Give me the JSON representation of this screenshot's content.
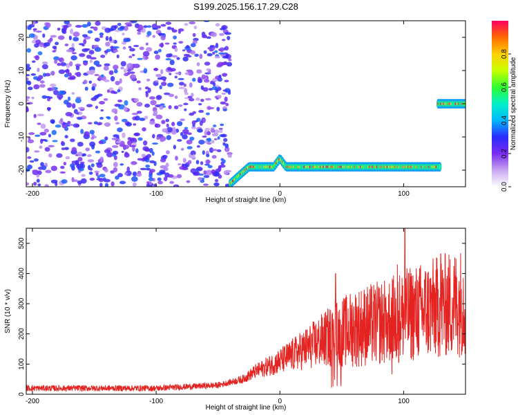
{
  "figure_title": "S199.2025.156.17.29.C28",
  "colors": {
    "snr_line": "#e52421",
    "axes": "#000000",
    "colormap": [
      "#ffffff",
      "#c9a6f0",
      "#7a2cf0",
      "#2b2bff",
      "#00b8ff",
      "#00f0c8",
      "#30ff30",
      "#c8ff00",
      "#ffd000",
      "#ff6a00",
      "#ff0060"
    ]
  },
  "chart_data": [
    {
      "type": "heatmap",
      "xlabel": "Height of straight line (km)",
      "ylabel": "Frequency (Hz)",
      "xlim": [
        -205,
        150
      ],
      "ylim": [
        -25,
        25
      ],
      "xticks": [
        "-200",
        "-100",
        "0",
        "100"
      ],
      "yticks": [
        "20",
        "10",
        "0",
        "-10",
        "-20"
      ],
      "colorbar": {
        "label": "Normalized spectral amplitude",
        "range": [
          0.0,
          1.0
        ],
        "ticks": [
          "0.0",
          "0.2",
          "0.4",
          "0.6",
          "0.8"
        ]
      },
      "regions": [
        {
          "description": "scattered low-amplitude noise",
          "x_range": [
            -205,
            -40
          ],
          "y_range": [
            -25,
            25
          ],
          "amplitude": [
            0.1,
            0.35
          ]
        },
        {
          "description": "strong band",
          "x_range": [
            -40,
            130
          ],
          "frequency": -19,
          "amplitude": [
            0.5,
            1.0
          ]
        },
        {
          "description": "strong band",
          "x_range": [
            128,
            150
          ],
          "frequency": 0,
          "amplitude": [
            0.5,
            1.0
          ]
        }
      ]
    },
    {
      "type": "line",
      "xlabel": "Height of straight line (km)",
      "ylabel": "SNR (10 * v/v)",
      "xlim": [
        -205,
        150
      ],
      "ylim": [
        0,
        550
      ],
      "xticks": [
        "-200",
        "-100",
        "0",
        "100"
      ],
      "yticks": [
        "500",
        "400",
        "300",
        "200",
        "100",
        "0"
      ],
      "trend": [
        [
          -205,
          20
        ],
        [
          -100,
          20
        ],
        [
          -50,
          30
        ],
        [
          -30,
          50
        ],
        [
          -20,
          75
        ],
        [
          0,
          110
        ],
        [
          20,
          150
        ],
        [
          40,
          190
        ],
        [
          60,
          220
        ],
        [
          80,
          235
        ],
        [
          100,
          260
        ],
        [
          120,
          280
        ],
        [
          150,
          310
        ]
      ],
      "peaks": [
        [
          101,
          550
        ],
        [
          95,
          430
        ],
        [
          130,
          465
        ],
        [
          45,
          400
        ]
      ]
    }
  ]
}
